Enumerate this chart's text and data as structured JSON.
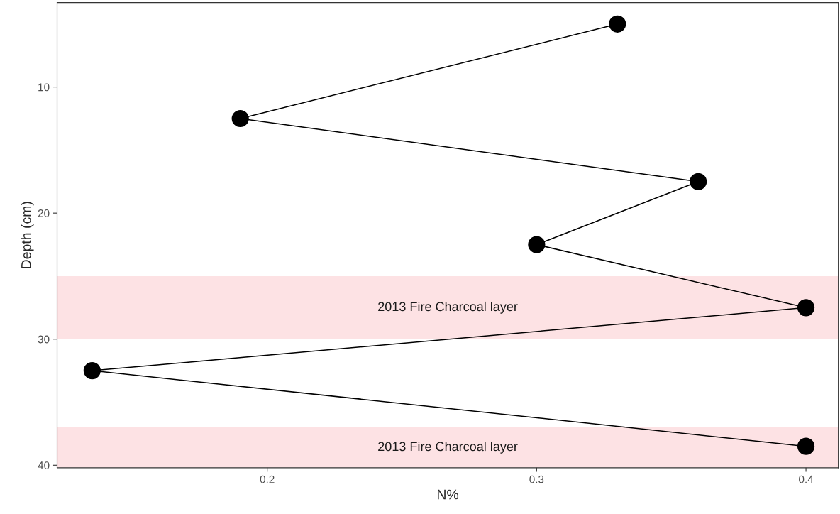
{
  "chart_data": {
    "type": "line",
    "xlabel": "N%",
    "ylabel": "Depth (cm)",
    "x": [
      0.33,
      0.19,
      0.36,
      0.3,
      0.4,
      0.135,
      0.4
    ],
    "series": [
      {
        "color": "#000000",
        "values": [
          5,
          12.5,
          17.5,
          22.5,
          27.5,
          32.5,
          38.5
        ]
      }
    ],
    "xlim": [
      0.122,
      0.412
    ],
    "xticks": [
      0.2,
      0.3,
      0.4
    ],
    "ylim": [
      40.2,
      3.3
    ],
    "yticks": [
      10,
      20,
      30,
      40
    ],
    "bands": [
      {
        "axis": "y",
        "from": 25,
        "to": 30,
        "label": "2013 Fire Charcoal layer",
        "color": "#fde2e4"
      },
      {
        "axis": "y",
        "from": 37,
        "to": 40.2,
        "label": "2013 Fire Charcoal layer",
        "color": "#fde2e4"
      }
    ],
    "marker": "circle",
    "line_style": "solid",
    "grid": false,
    "legend": false
  }
}
